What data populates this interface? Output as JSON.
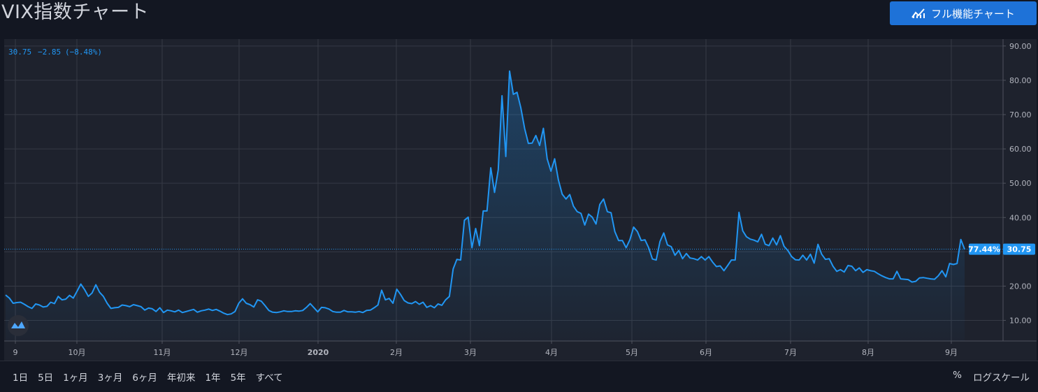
{
  "page": {
    "title": "VIX指数チャート",
    "full_chart_button": "フル機能チャート",
    "full_chart_icon": "chart-line-icon"
  },
  "legend": {
    "value": "30.75",
    "change": "−2.85",
    "change_pct": "(−8.48%)"
  },
  "price_labels": {
    "percent": "77.44%",
    "last": "30.75"
  },
  "time_ranges": [
    "1日",
    "5日",
    "1ヶ月",
    "3ヶ月",
    "6ヶ月",
    "年初来",
    "1年",
    "5年",
    "すべて"
  ],
  "scale_controls": {
    "percent": "%",
    "log": "ログスケール"
  },
  "colors": {
    "line": "#2196f3",
    "background": "#1e222d",
    "grid": "#363a45",
    "text": "#b2b5be"
  },
  "chart_data": {
    "type": "area",
    "y_ticks": [
      "90.00",
      "80.00",
      "70.00",
      "60.00",
      "50.00",
      "40.00",
      "30.00",
      "20.00",
      "10.00"
    ],
    "ylim": [
      4,
      92
    ],
    "x_ticks": [
      "9",
      "10月",
      "11月",
      "12月",
      "2020",
      "2月",
      "3月",
      "4月",
      "5月",
      "6月",
      "7月",
      "8月",
      "9月"
    ],
    "last_value": 30.75,
    "series": [
      {
        "values": [
          17.4,
          16.5,
          15.0,
          15.2,
          15.3,
          14.7,
          14.0,
          13.5,
          14.8,
          14.5,
          13.9,
          14.1,
          15.3,
          14.9,
          17.0,
          16.0,
          16.2,
          17.3,
          16.5,
          18.5,
          20.6,
          19.0,
          17.0,
          18.0,
          20.4,
          18.2,
          17.0,
          15.0,
          13.5,
          13.7,
          13.8,
          14.5,
          14.3,
          14.0,
          14.6,
          14.3,
          14.0,
          13.0,
          13.6,
          13.4,
          12.6,
          13.7,
          12.3,
          13.0,
          12.8,
          12.5,
          13.0,
          12.3,
          12.6,
          12.9,
          13.2,
          12.4,
          12.8,
          13.0,
          13.3,
          12.9,
          13.2,
          12.7,
          12.1,
          11.7,
          11.9,
          12.6,
          15.0,
          16.3,
          15.0,
          14.6,
          13.9,
          16.0,
          15.6,
          14.3,
          12.9,
          12.4,
          12.3,
          12.5,
          12.8,
          12.6,
          12.6,
          12.8,
          12.7,
          12.9,
          13.8,
          14.9,
          13.7,
          12.5,
          13.8,
          13.7,
          13.3,
          12.6,
          12.4,
          12.4,
          12.9,
          12.5,
          12.5,
          12.4,
          12.6,
          12.3,
          12.9,
          13.0,
          13.7,
          14.5,
          18.8,
          16.0,
          16.4,
          15.0,
          19.1,
          17.6,
          15.8,
          15.1,
          14.9,
          15.5,
          14.7,
          15.3,
          13.8,
          14.3,
          13.7,
          14.8,
          14.4,
          16.0,
          17.0,
          25.0,
          27.8,
          27.6,
          39.2,
          40.1,
          31.2,
          36.8,
          31.8,
          41.9,
          41.9,
          54.5,
          47.3,
          53.9,
          75.5,
          57.8,
          82.7,
          75.9,
          76.5,
          72.0,
          66.0,
          61.6,
          61.7,
          63.9,
          61.0,
          66.0,
          57.1,
          53.5,
          57.1,
          50.9,
          46.8,
          45.4,
          46.7,
          43.3,
          41.7,
          41.2,
          37.8,
          41.0,
          40.1,
          38.1,
          43.8,
          45.4,
          41.7,
          41.4,
          35.9,
          33.3,
          33.3,
          31.2,
          33.5,
          37.2,
          35.9,
          33.3,
          33.5,
          31.2,
          27.9,
          27.6,
          33.0,
          35.5,
          32.0,
          31.5,
          29.0,
          30.4,
          28.0,
          29.5,
          28.2,
          28.0,
          27.6,
          28.6,
          27.6,
          28.6,
          27.0,
          25.7,
          25.9,
          24.5,
          26.0,
          27.6,
          27.6,
          41.5,
          36.1,
          34.4,
          33.7,
          33.4,
          32.9,
          35.1,
          32.2,
          31.8,
          34.0,
          32.0,
          34.7,
          31.6,
          30.4,
          28.6,
          27.7,
          27.6,
          29.0,
          27.6,
          29.3,
          26.7,
          32.2,
          29.3,
          27.8,
          28.0,
          25.8,
          24.3,
          24.8,
          24.1,
          26.0,
          25.8,
          24.5,
          25.3,
          24.0,
          24.8,
          24.5,
          24.3,
          23.6,
          23.0,
          22.5,
          22.1,
          22.1,
          24.3,
          22.1,
          22.0,
          21.9,
          21.2,
          21.4,
          22.4,
          22.5,
          22.3,
          22.1,
          22.0,
          23.0,
          24.5,
          22.7,
          26.6,
          26.3,
          26.6,
          33.6,
          30.75
        ]
      }
    ]
  }
}
